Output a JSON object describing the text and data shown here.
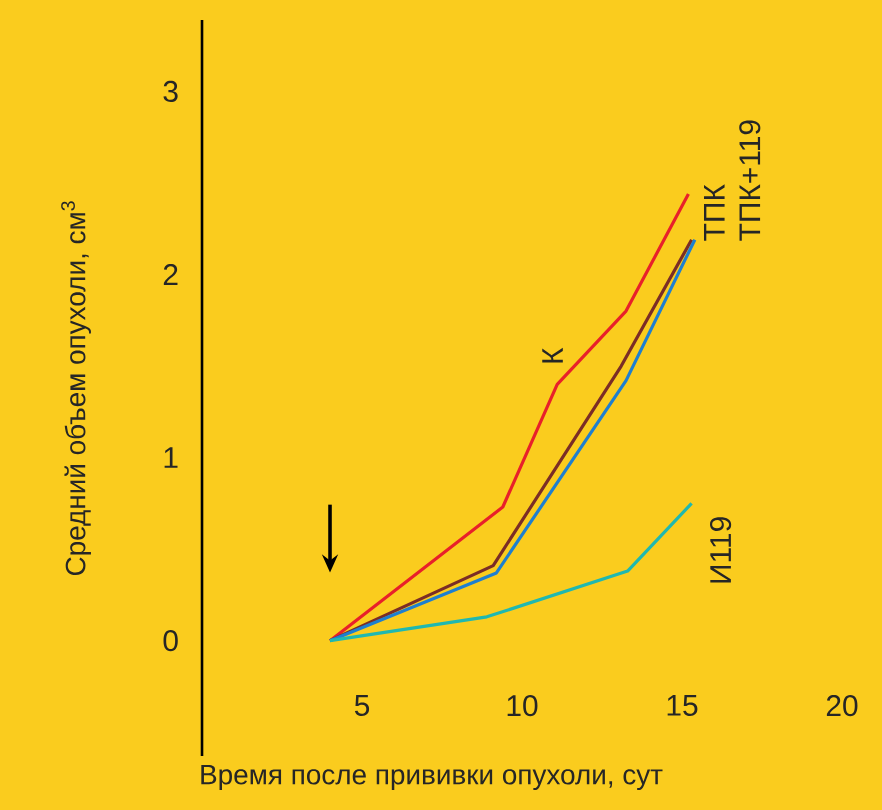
{
  "chart_data": {
    "type": "line",
    "xlabel": "Время после прививки опухоли, сут",
    "ylabel": "Средний объем опухоли, см$^{3}$",
    "xlim": [
      0,
      20
    ],
    "ylim": [
      -0.63,
      3.39
    ],
    "xticks": [
      5,
      10,
      15,
      20
    ],
    "yticks": [
      0,
      1,
      2,
      3
    ],
    "marker": "none",
    "line_style": "solid",
    "series": [
      {
        "name": "К",
        "color": "#e8202a",
        "x": [
          4,
          9.4,
          11.1,
          13.25,
          15.2
        ],
        "values": [
          0,
          0.73,
          1.4,
          1.8,
          2.44
        ]
      },
      {
        "name": "ТПК",
        "color": "#7b2d26",
        "x": [
          4,
          9.1,
          13.1,
          15.3
        ],
        "values": [
          0,
          0.41,
          1.5,
          2.19
        ]
      },
      {
        "name": "ТПК+119",
        "color": "#1e7fd0",
        "x": [
          4,
          9.2,
          13.25,
          15.4
        ],
        "values": [
          0,
          0.37,
          1.42,
          2.19
        ]
      },
      {
        "name": "И119",
        "color": "#20b8b0",
        "x": [
          4,
          8.9,
          13.3,
          15.3
        ],
        "values": [
          0,
          0.13,
          0.38,
          0.75
        ]
      }
    ]
  }
}
